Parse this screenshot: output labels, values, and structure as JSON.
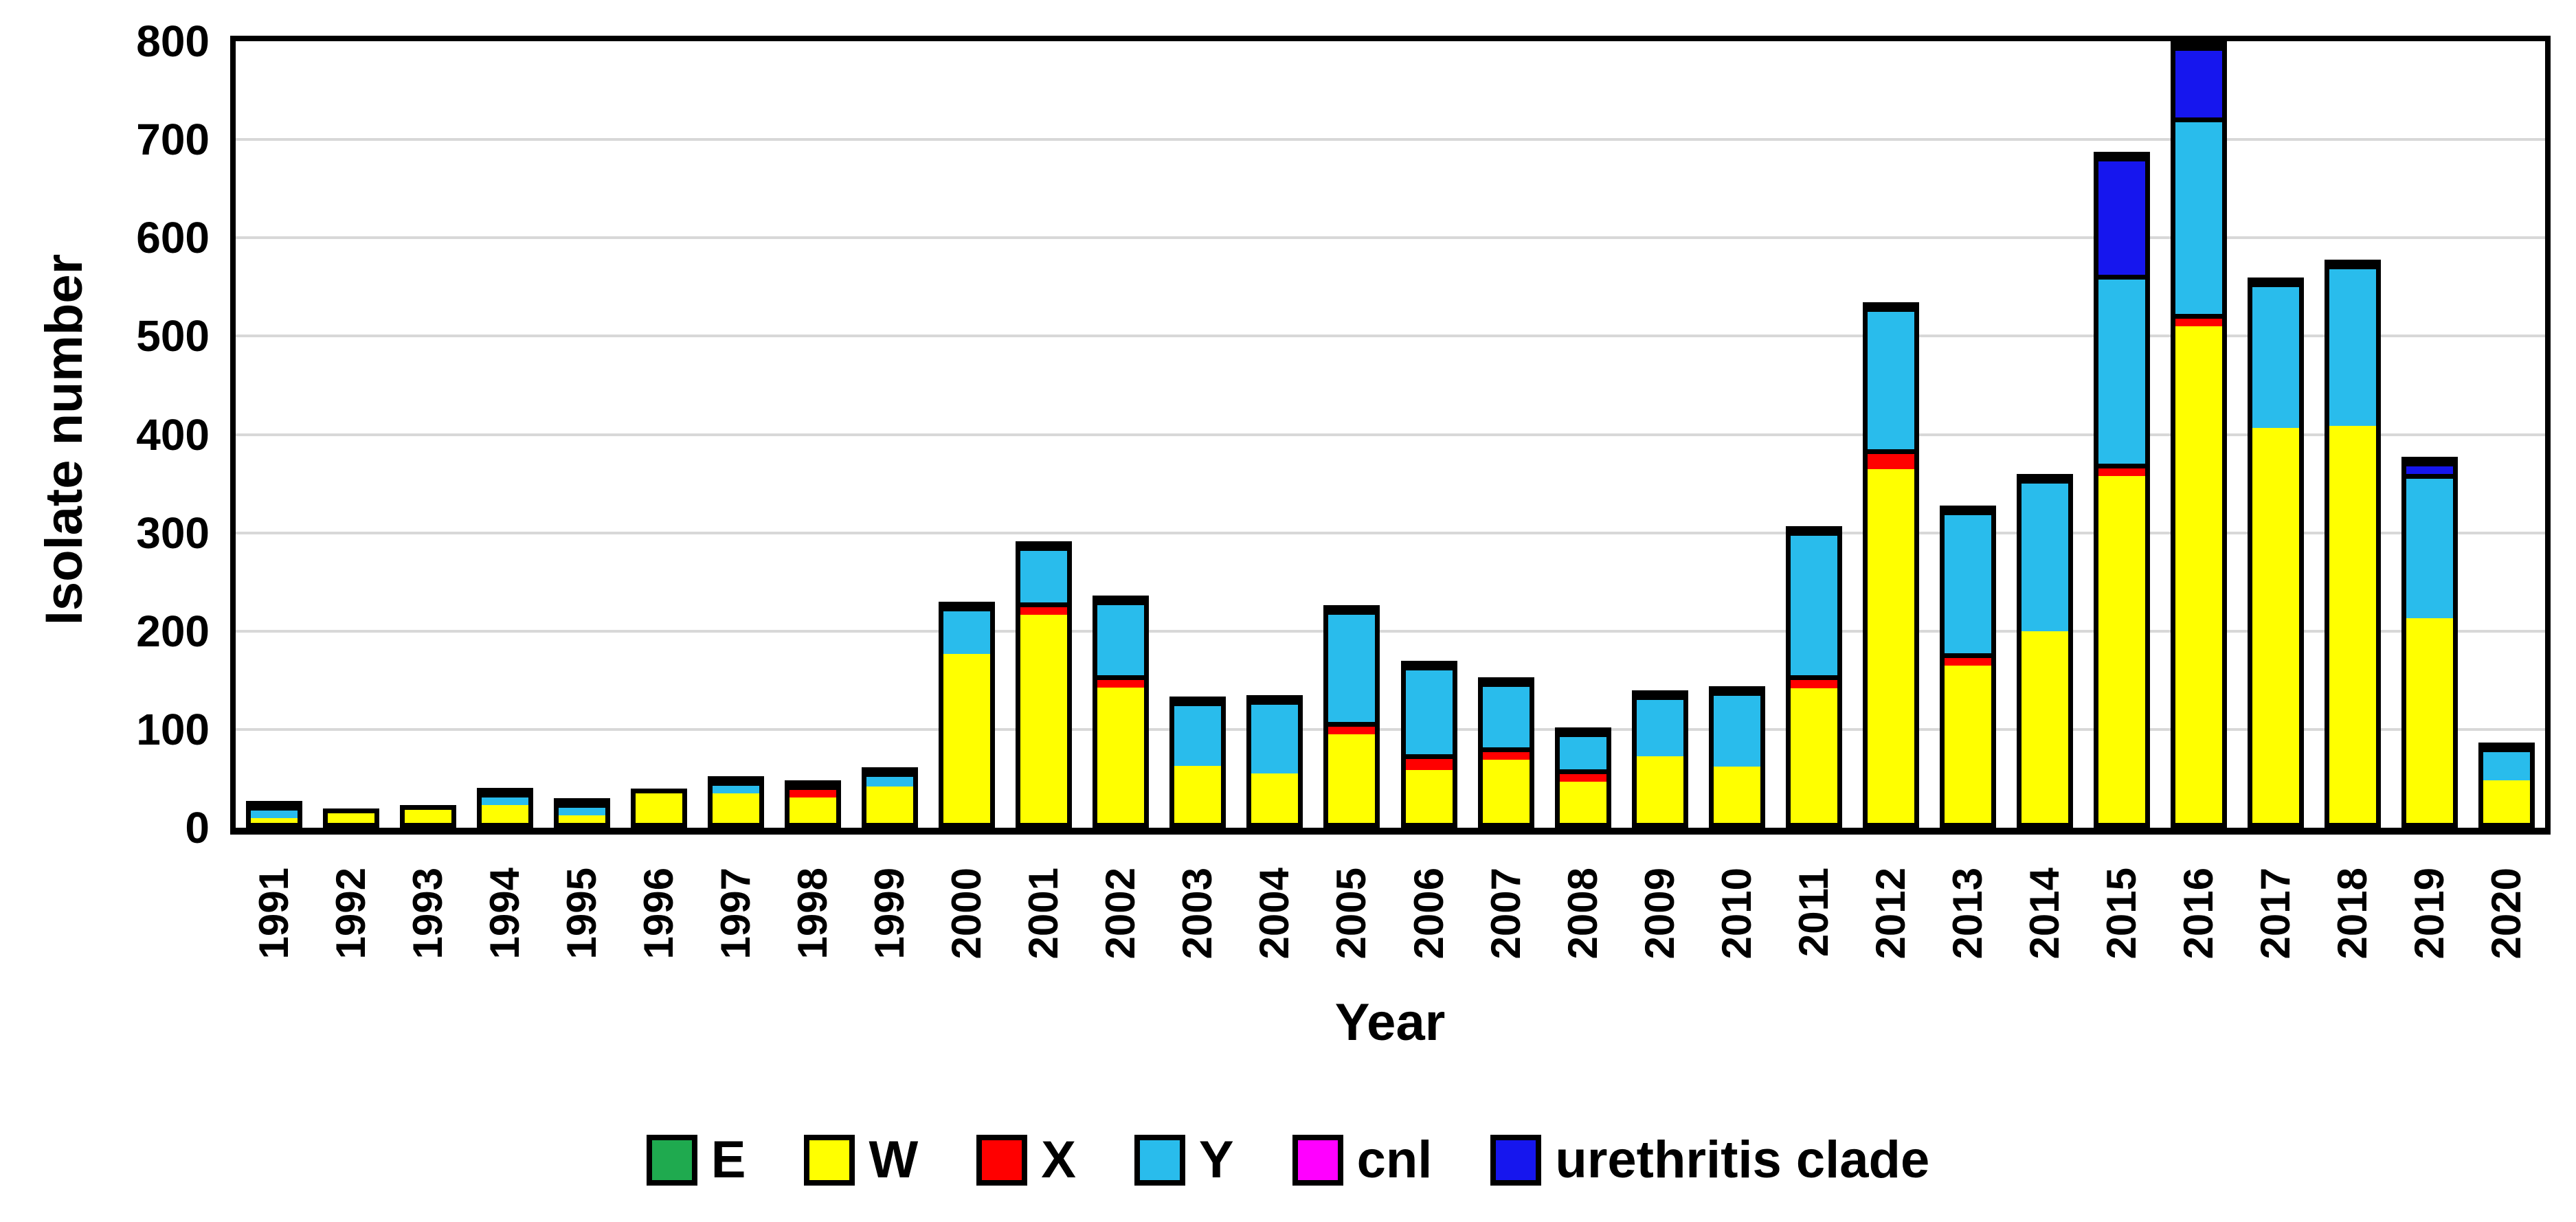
{
  "chart_data": {
    "type": "bar",
    "stacked": true,
    "title": "",
    "xlabel": "Year",
    "ylabel": "Isolate number",
    "ylim": [
      0,
      800
    ],
    "ytick_step": 100,
    "grid": "horizontal",
    "legend_position": "bottom",
    "categories": [
      "1991",
      "1992",
      "1993",
      "1994",
      "1995",
      "1996",
      "1997",
      "1998",
      "1999",
      "2000",
      "2001",
      "2002",
      "2003",
      "2004",
      "2005",
      "2006",
      "2007",
      "2008",
      "2009",
      "2010",
      "2011",
      "2012",
      "2013",
      "2014",
      "2015",
      "2016",
      "2017",
      "2018",
      "2019",
      "2020"
    ],
    "series": [
      {
        "name": "E",
        "color": "#1FAA4F",
        "values": [
          0,
          0,
          0,
          0,
          0,
          0,
          0,
          0,
          0,
          0,
          0,
          0,
          0,
          0,
          0,
          0,
          0,
          0,
          0,
          0,
          0,
          0,
          0,
          0,
          0,
          0,
          0,
          0,
          0,
          0
        ]
      },
      {
        "name": "W",
        "color": "#FFFF00",
        "values": [
          5,
          10,
          13,
          18,
          8,
          30,
          30,
          26,
          37,
          172,
          212,
          138,
          58,
          50,
          90,
          54,
          64,
          42,
          68,
          57,
          137,
          360,
          160,
          195,
          353,
          505,
          402,
          404,
          208,
          43
        ]
      },
      {
        "name": "X",
        "color": "#FF0000",
        "values": [
          0,
          0,
          0,
          0,
          0,
          0,
          0,
          6,
          0,
          0,
          8,
          8,
          0,
          0,
          8,
          16,
          9,
          8,
          0,
          0,
          13,
          20,
          7,
          0,
          8,
          10,
          0,
          0,
          0,
          0
        ]
      },
      {
        "name": "Y",
        "color": "#29BCEC",
        "values": [
          10,
          0,
          0,
          9,
          8,
          0,
          8,
          0,
          15,
          48,
          57,
          76,
          66,
          75,
          114,
          90,
          67,
          38,
          62,
          77,
          147,
          145,
          145,
          155,
          192,
          200,
          148,
          164,
          147,
          34
        ]
      },
      {
        "name": "cnl",
        "color": "#FF00FF",
        "values": [
          0,
          0,
          0,
          0,
          0,
          0,
          0,
          0,
          0,
          0,
          0,
          0,
          0,
          0,
          0,
          0,
          0,
          0,
          0,
          0,
          0,
          0,
          0,
          0,
          0,
          0,
          0,
          0,
          0,
          0
        ]
      },
      {
        "name": "urethritis clade",
        "color": "#1616EE",
        "values": [
          0,
          0,
          0,
          0,
          0,
          0,
          0,
          0,
          0,
          0,
          0,
          0,
          0,
          0,
          0,
          0,
          0,
          0,
          0,
          0,
          0,
          0,
          0,
          0,
          120,
          73,
          0,
          0,
          8,
          0
        ]
      }
    ]
  },
  "colors": {
    "background": "#FFFFFF",
    "plot_border": "#000000",
    "bar_border": "#000000",
    "gridline": "#D8D8D8",
    "text": "#000000"
  }
}
